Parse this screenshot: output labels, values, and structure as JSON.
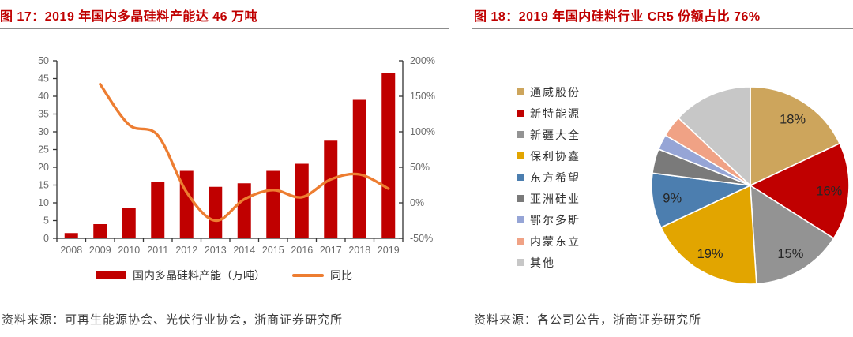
{
  "left_panel": {
    "title": "图 17：2019 年国内多晶硅料产能达 46 万吨",
    "source_label": "资料来源：可再生能源协会、光伏行业协会，浙商证券研究所",
    "legend": [
      {
        "label": "国内多晶硅料产能（万吨）",
        "color": "#C00000",
        "kind": "bar"
      },
      {
        "label": "同比",
        "color": "#ED7D31",
        "kind": "line"
      }
    ]
  },
  "right_panel": {
    "title": "图 18：2019 年国内硅料行业 CR5 份额占比 76%",
    "source_label": "资料来源：各公司公告，浙商证券研究所"
  },
  "colors": {
    "title_red": "#C00000",
    "bar_red": "#C00000",
    "line_orange": "#ED7D31",
    "axis_line": "#333333",
    "axis_text": "#6b6b6b",
    "rule_gray": "#8c8c8c"
  },
  "chart_data": [
    {
      "type": "bar",
      "subtype": "bar-line-combo",
      "title": "2019 年国内多晶硅料产能达 46 万吨",
      "categories": [
        "2008",
        "2009",
        "2010",
        "2011",
        "2012",
        "2013",
        "2014",
        "2015",
        "2016",
        "2017",
        "2018",
        "2019"
      ],
      "series": [
        {
          "name": "国内多晶硅料产能（万吨）",
          "type": "bar",
          "axis": "left",
          "color": "#C00000",
          "values": [
            1.5,
            4,
            8.5,
            16,
            19,
            14.5,
            15.5,
            19,
            21,
            27.5,
            39,
            46.5
          ]
        },
        {
          "name": "同比",
          "type": "line",
          "axis": "right",
          "color": "#ED7D31",
          "values": [
            null,
            167,
            110,
            95,
            15,
            -25,
            5,
            18,
            8,
            33,
            40,
            20
          ]
        }
      ],
      "left_axis": {
        "min": 0,
        "max": 50,
        "step": 5,
        "tick_labels": [
          "0",
          "5",
          "10",
          "15",
          "20",
          "25",
          "30",
          "35",
          "40",
          "45",
          "50"
        ]
      },
      "right_axis": {
        "min": -50,
        "max": 200,
        "step": 50,
        "tick_labels": [
          "-50%",
          "0%",
          "50%",
          "100%",
          "150%",
          "200%"
        ]
      },
      "grid": false,
      "legend_position": "bottom"
    },
    {
      "type": "pie",
      "title": "2019 年国内硅料行业 CR5 份额占比 76%",
      "start_angle_deg": 0,
      "direction": "clockwise",
      "legend_position": "left",
      "slices": [
        {
          "name": "通威股份",
          "value": 18,
          "label": "18%",
          "color": "#CDA55C"
        },
        {
          "name": "新特能源",
          "value": 16,
          "label": "16%",
          "color": "#C00000"
        },
        {
          "name": "新疆大全",
          "value": 15,
          "label": "15%",
          "color": "#939393"
        },
        {
          "name": "保利协鑫",
          "value": 19,
          "label": "19%",
          "color": "#E2A500"
        },
        {
          "name": "东方希望",
          "value": 9,
          "label": "9%",
          "color": "#4C7EAF"
        },
        {
          "name": "亚洲硅业",
          "value": 4,
          "label": "",
          "color": "#7A7A7A"
        },
        {
          "name": "鄂尔多斯",
          "value": 2.5,
          "label": "",
          "color": "#96A5D6"
        },
        {
          "name": "内蒙东立",
          "value": 3.5,
          "label": "",
          "color": "#F0A285"
        },
        {
          "name": "其他",
          "value": 13,
          "label": "",
          "color": "#C7C7C7"
        }
      ]
    }
  ]
}
